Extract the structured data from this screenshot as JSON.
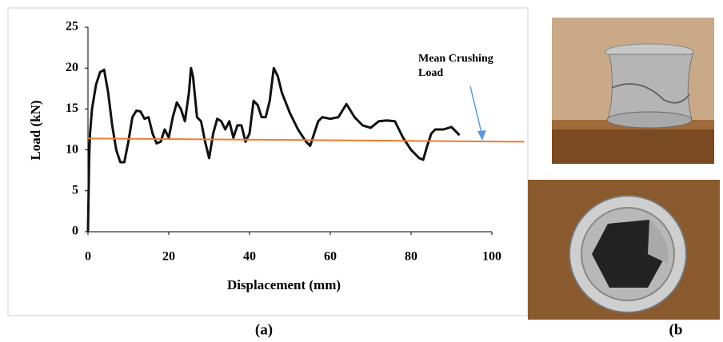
{
  "chart_data": {
    "type": "line",
    "x_label": "Displacement (mm)",
    "y_label": "Load (kN)",
    "x": [
      0,
      0.3,
      0.5,
      1,
      2,
      3,
      4,
      5,
      6,
      7,
      8,
      9,
      10,
      11,
      12,
      13,
      14,
      15,
      16,
      17,
      18,
      19,
      20,
      21,
      22,
      23,
      24,
      25,
      25.5,
      26,
      27,
      28,
      29,
      30,
      31,
      32,
      33,
      34,
      35,
      36,
      37,
      38,
      39,
      40,
      41,
      42,
      43,
      44,
      45,
      46,
      47,
      48,
      50,
      52,
      54,
      55,
      56,
      57,
      58,
      60,
      62,
      64,
      66,
      68,
      70,
      72,
      74,
      76,
      78,
      80,
      82,
      83,
      84,
      85,
      86,
      88,
      90,
      91,
      92
    ],
    "values": [
      0,
      9,
      12,
      15,
      18,
      19.5,
      19.8,
      17,
      13,
      10,
      8.5,
      8.5,
      11,
      14,
      14.8,
      14.7,
      13.8,
      14,
      12,
      10.8,
      11,
      12.5,
      11.5,
      14,
      15.8,
      15,
      13.5,
      17,
      20,
      19,
      14,
      13.5,
      11,
      9,
      12,
      13.8,
      13.5,
      12.5,
      13.5,
      11.5,
      13,
      13,
      11,
      12,
      16,
      15.5,
      14,
      14,
      16,
      20,
      19,
      17,
      14.5,
      12.5,
      11,
      10.5,
      12,
      13.5,
      14,
      13.8,
      14,
      15.6,
      14,
      13,
      12.7,
      13.5,
      13.6,
      13.5,
      11.5,
      10,
      9,
      8.8,
      10.5,
      12,
      12.5,
      12.5,
      12.8,
      12.3,
      11.8
    ],
    "color": "#111111",
    "mean_line": {
      "x": [
        0,
        108
      ],
      "values": [
        11.4,
        11.0
      ],
      "color": "#f07b2f"
    },
    "annotation": {
      "lines": [
        "Mean Crushing",
        "Load"
      ],
      "arrow_color": "#5b9bd5"
    },
    "xlim": [
      0,
      100
    ],
    "xticks": [
      0,
      20,
      40,
      60,
      80,
      100
    ],
    "ylim": [
      0,
      25
    ],
    "yticks": [
      0,
      5,
      10,
      15,
      20,
      25
    ],
    "grid": false
  },
  "captions": [
    "(a)",
    "(b"
  ]
}
